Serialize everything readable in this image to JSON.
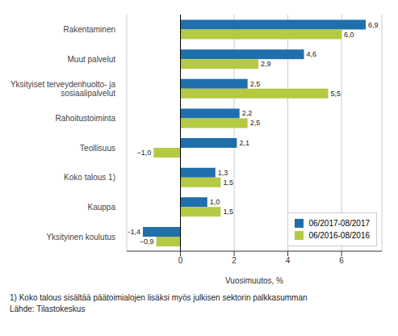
{
  "chart_data": {
    "type": "bar",
    "orientation": "horizontal",
    "categories": [
      "Rakentaminen",
      "Muut palvelut",
      "Yksityiset terveydenhuolto- ja\nsosiaalipalvelut",
      "Rahoitustoiminta",
      "Teollisuus",
      "Koko talous 1)",
      "Kauppa",
      "Yksityinen koulutus"
    ],
    "series": [
      {
        "name": "06/2017-08/2017",
        "color": "#1f6fad",
        "values": [
          6.9,
          4.6,
          2.5,
          2.2,
          2.1,
          1.3,
          1.0,
          -1.4
        ],
        "value_labels": [
          "6,9",
          "4,6",
          "2,5",
          "2,2",
          "2,1",
          "1,3",
          "1,0",
          "-1,4"
        ]
      },
      {
        "name": "06/2016-08/2016",
        "color": "#b5c943",
        "values": [
          6.0,
          2.9,
          5.5,
          2.5,
          -1.0,
          1.5,
          1.5,
          -0.9
        ],
        "value_labels": [
          "6,0",
          "2,9",
          "5,5",
          "2,5",
          "−1,0",
          "1,5",
          "1,5",
          "−0,9"
        ]
      }
    ],
    "xlabel": "Vuosimuutos, %",
    "xlim": [
      -2,
      7.5
    ],
    "xticks": [
      0,
      2,
      4,
      6
    ],
    "grid": true,
    "legend": "lower right",
    "data_labels": true,
    "annotations": [
      "1) Koko talous sisältää päätoimialojen lisäksi myös julkisen sektorin palkkasumman",
      "Lähde: Tilastokeskus"
    ]
  }
}
